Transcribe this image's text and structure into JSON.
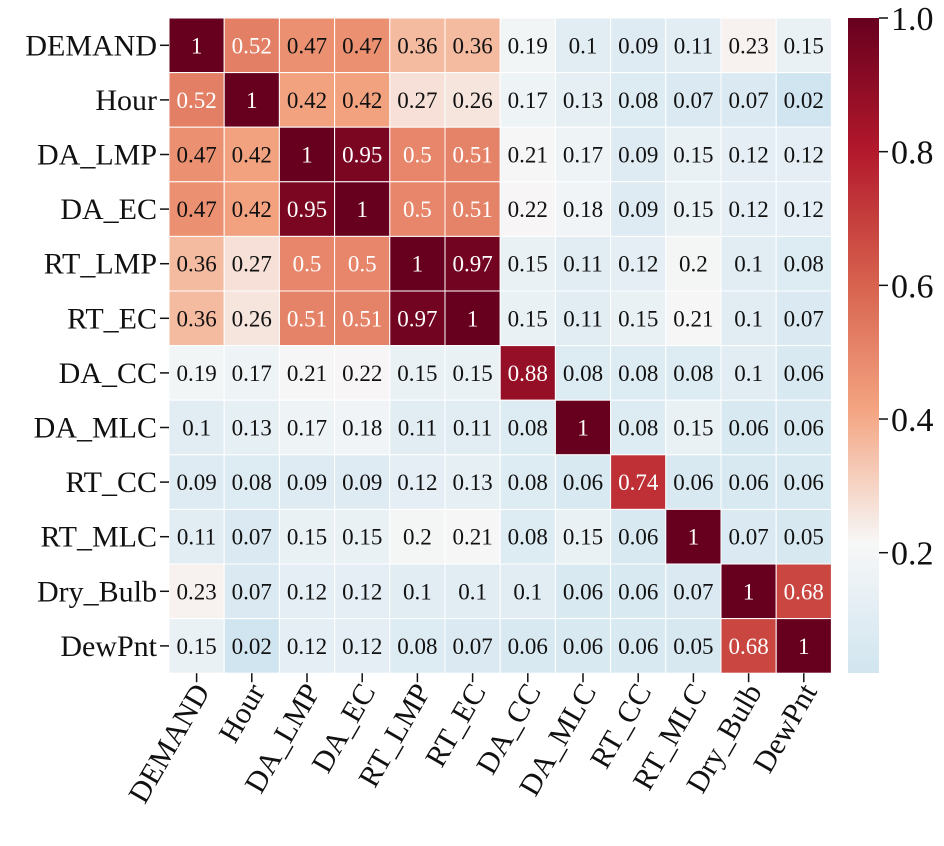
{
  "chart_data": {
    "type": "heatmap",
    "labels": [
      "DEMAND",
      "Hour",
      "DA_LMP",
      "DA_EC",
      "RT_LMP",
      "RT_EC",
      "DA_CC",
      "DA_MLC",
      "RT_CC",
      "RT_MLC",
      "Dry_Bulb",
      "DewPnt"
    ],
    "values": [
      [
        1,
        0.52,
        0.47,
        0.47,
        0.36,
        0.36,
        0.19,
        0.1,
        0.09,
        0.11,
        0.23,
        0.15
      ],
      [
        0.52,
        1,
        0.42,
        0.42,
        0.27,
        0.26,
        0.17,
        0.13,
        0.08,
        0.07,
        0.07,
        0.02
      ],
      [
        0.47,
        0.42,
        1,
        0.95,
        0.5,
        0.51,
        0.21,
        0.17,
        0.09,
        0.15,
        0.12,
        0.12
      ],
      [
        0.47,
        0.42,
        0.95,
        1,
        0.5,
        0.51,
        0.22,
        0.18,
        0.09,
        0.15,
        0.12,
        0.12
      ],
      [
        0.36,
        0.27,
        0.5,
        0.5,
        1,
        0.97,
        0.15,
        0.11,
        0.12,
        0.2,
        0.1,
        0.08
      ],
      [
        0.36,
        0.26,
        0.51,
        0.51,
        0.97,
        1,
        0.15,
        0.11,
        0.15,
        0.21,
        0.1,
        0.07
      ],
      [
        0.19,
        0.17,
        0.21,
        0.22,
        0.15,
        0.15,
        0.88,
        0.08,
        0.08,
        0.08,
        0.1,
        0.06
      ],
      [
        0.1,
        0.13,
        0.17,
        0.18,
        0.11,
        0.11,
        0.08,
        1,
        0.08,
        0.15,
        0.06,
        0.06
      ],
      [
        0.09,
        0.08,
        0.09,
        0.09,
        0.12,
        0.13,
        0.08,
        0.06,
        0.74,
        0.06,
        0.06,
        0.06
      ],
      [
        0.11,
        0.07,
        0.15,
        0.15,
        0.2,
        0.21,
        0.08,
        0.15,
        0.06,
        1,
        0.07,
        0.05
      ],
      [
        0.23,
        0.07,
        0.12,
        0.12,
        0.1,
        0.1,
        0.1,
        0.06,
        0.06,
        0.07,
        1,
        0.68
      ],
      [
        0.15,
        0.02,
        0.12,
        0.12,
        0.08,
        0.07,
        0.06,
        0.06,
        0.06,
        0.05,
        0.68,
        1
      ]
    ],
    "colorbar": {
      "range": [
        0.02,
        1.0
      ],
      "ticks": [
        "0.2",
        "0.4",
        "0.6",
        "0.8",
        "1.0"
      ],
      "colors": [
        "#d1e5f0",
        "#f7f7f7",
        "#f4a582",
        "#d6604d",
        "#b2182b",
        "#67001f"
      ]
    },
    "title": "",
    "xlabel": "",
    "ylabel": ""
  }
}
